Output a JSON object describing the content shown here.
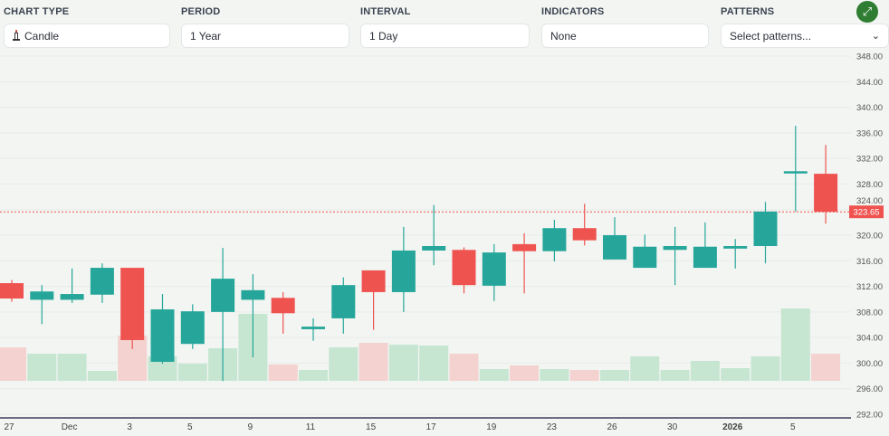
{
  "controls": {
    "chart_type": {
      "label": "CHART TYPE",
      "value": "Candle",
      "icon": "candle-icon"
    },
    "period": {
      "label": "PERIOD",
      "value": "1 Year"
    },
    "interval": {
      "label": "INTERVAL",
      "value": "1 Day"
    },
    "indicators": {
      "label": "INDICATORS",
      "value": "None"
    },
    "patterns": {
      "label": "PATTERNS",
      "placeholder": "Select patterns..."
    },
    "expand_icon": "expand-arrows-icon"
  },
  "chart_data": {
    "type": "candlestick",
    "colors": {
      "up": "#26a69a",
      "down": "#ef5350",
      "volume_up": "#c6e6d2",
      "volume_down": "#f3d2d0",
      "last_price": "#ef5350"
    },
    "ylim": [
      292,
      348
    ],
    "y_ticks": [
      "348.00",
      "344.00",
      "340.00",
      "336.00",
      "332.00",
      "328.00",
      "324.00",
      "320.00",
      "316.00",
      "312.00",
      "308.00",
      "304.00",
      "300.00",
      "296.00",
      "292.00"
    ],
    "x_tick_labels": [
      {
        "index": 0,
        "label": "27"
      },
      {
        "index": 2,
        "label": "Dec"
      },
      {
        "index": 4,
        "label": "3"
      },
      {
        "index": 6,
        "label": "5"
      },
      {
        "index": 8,
        "label": "9"
      },
      {
        "index": 10,
        "label": "11"
      },
      {
        "index": 12,
        "label": "15"
      },
      {
        "index": 14,
        "label": "17"
      },
      {
        "index": 16,
        "label": "19"
      },
      {
        "index": 18,
        "label": "23"
      },
      {
        "index": 20,
        "label": "26"
      },
      {
        "index": 22,
        "label": "30"
      },
      {
        "index": 24,
        "label": "2026",
        "bold": true
      },
      {
        "index": 26,
        "label": "5"
      }
    ],
    "last_price": "323.65",
    "grid": true,
    "candles": [
      {
        "o": 312.5,
        "h": 313.0,
        "l": 309.6,
        "c": 310.1,
        "v": 37
      },
      {
        "o": 309.9,
        "h": 312.2,
        "l": 306.1,
        "c": 311.2,
        "v": 30
      },
      {
        "o": 309.9,
        "h": 314.8,
        "l": 309.4,
        "c": 310.8,
        "v": 30
      },
      {
        "o": 310.7,
        "h": 315.6,
        "l": 309.4,
        "c": 314.9,
        "v": 11
      },
      {
        "o": 314.9,
        "h": 314.9,
        "l": 302.2,
        "c": 303.6,
        "v": 50
      },
      {
        "o": 300.2,
        "h": 310.8,
        "l": 299.9,
        "c": 308.4,
        "v": 27
      },
      {
        "o": 303.0,
        "h": 309.2,
        "l": 302.2,
        "c": 308.1,
        "v": 19
      },
      {
        "o": 308.0,
        "h": 318.0,
        "l": 297.2,
        "c": 313.2,
        "v": 36
      },
      {
        "o": 309.9,
        "h": 313.9,
        "l": 300.9,
        "c": 311.4,
        "v": 74
      },
      {
        "o": 310.2,
        "h": 311.1,
        "l": 304.6,
        "c": 307.8,
        "v": 18
      },
      {
        "o": 305.3,
        "h": 307.0,
        "l": 303.5,
        "c": 305.7,
        "v": 12
      },
      {
        "o": 307.0,
        "h": 313.4,
        "l": 304.6,
        "c": 312.2,
        "v": 37
      },
      {
        "o": 314.5,
        "h": 314.5,
        "l": 305.2,
        "c": 311.1,
        "v": 42
      },
      {
        "o": 311.1,
        "h": 321.3,
        "l": 308.0,
        "c": 317.6,
        "v": 40
      },
      {
        "o": 317.6,
        "h": 324.7,
        "l": 315.3,
        "c": 318.3,
        "v": 39
      },
      {
        "o": 317.7,
        "h": 318.1,
        "l": 310.9,
        "c": 312.2,
        "v": 30
      },
      {
        "o": 312.1,
        "h": 318.6,
        "l": 309.7,
        "c": 317.3,
        "v": 13
      },
      {
        "o": 318.6,
        "h": 320.3,
        "l": 310.9,
        "c": 317.5,
        "v": 17
      },
      {
        "o": 317.5,
        "h": 322.4,
        "l": 315.9,
        "c": 321.1,
        "v": 13
      },
      {
        "o": 321.1,
        "h": 324.9,
        "l": 318.4,
        "c": 319.2,
        "v": 12
      },
      {
        "o": 316.2,
        "h": 322.8,
        "l": 316.2,
        "c": 320.0,
        "v": 12
      },
      {
        "o": 314.9,
        "h": 320.1,
        "l": 314.9,
        "c": 318.2,
        "v": 27
      },
      {
        "o": 317.7,
        "h": 321.3,
        "l": 312.2,
        "c": 318.3,
        "v": 12
      },
      {
        "o": 314.9,
        "h": 322.0,
        "l": 314.9,
        "c": 318.2,
        "v": 22
      },
      {
        "o": 317.9,
        "h": 319.4,
        "l": 314.8,
        "c": 318.3,
        "v": 14
      },
      {
        "o": 318.3,
        "h": 325.2,
        "l": 315.6,
        "c": 323.7,
        "v": 27
      },
      {
        "o": 329.8,
        "h": 337.1,
        "l": 323.7,
        "c": 330.0,
        "v": 80
      },
      {
        "o": 329.6,
        "h": 334.1,
        "l": 321.8,
        "c": 323.65,
        "v": 30
      }
    ]
  }
}
